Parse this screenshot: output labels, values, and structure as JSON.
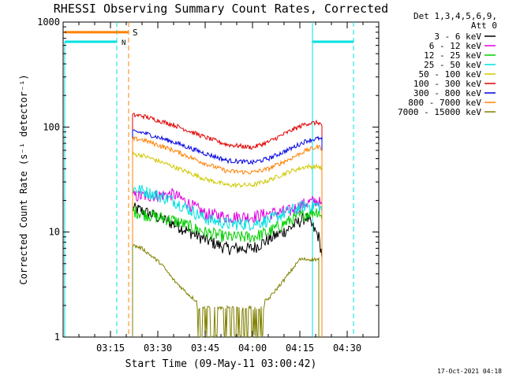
{
  "chart_data": {
    "type": "line",
    "title": "RHESSI Observing Summary Count Rates, Corrected",
    "xlabel": "Start Time (09-May-11 03:00:42)",
    "ylabel": "Corrected Count Rate (s⁻¹ detector⁻¹)",
    "y_scale": "log",
    "ylim": [
      1,
      1000
    ],
    "xlim": [
      "03:00",
      "04:40"
    ],
    "x_ticks": [
      "03:15",
      "03:30",
      "03:45",
      "04:00",
      "04:15",
      "04:30"
    ],
    "y_ticks": [
      "1",
      "10",
      "100",
      "1000"
    ],
    "grid": false,
    "legend_position": "top-right",
    "legend_header": [
      "Det 1,3,4,5,6,9,",
      "Att 0"
    ],
    "timestamp": "17-Oct-2021 04:18",
    "markers": [
      {
        "label": "S",
        "color": "#ff8000",
        "value": 800
      },
      {
        "label": "N",
        "color": "#00e0e0",
        "value": 650
      }
    ],
    "series": [
      {
        "name": "3 - 6 keV",
        "color": "#000000",
        "x": [
          "03:22",
          "03:25",
          "03:35",
          "03:45",
          "03:52",
          "04:00",
          "04:05",
          "04:12",
          "04:17",
          "04:21",
          "04:22"
        ],
        "values": [
          17,
          16,
          12,
          8.5,
          7.0,
          7.0,
          8.5,
          11,
          14,
          9,
          6
        ]
      },
      {
        "name": "6 - 12 keV",
        "color": "#e000e0",
        "x": [
          "03:22",
          "03:25",
          "03:35",
          "03:45",
          "03:52",
          "04:00",
          "04:05",
          "04:12",
          "04:17",
          "04:21",
          "04:22"
        ],
        "values": [
          22,
          22,
          23,
          15,
          14,
          14,
          15,
          16,
          19,
          20,
          17
        ]
      },
      {
        "name": "12 - 25 keV",
        "color": "#00d000",
        "x": [
          "03:22",
          "03:25",
          "03:35",
          "03:45",
          "03:52",
          "04:00",
          "04:05",
          "04:12",
          "04:17",
          "04:21",
          "04:22"
        ],
        "values": [
          16,
          15,
          13,
          10,
          9,
          9,
          10,
          13,
          15,
          16,
          13
        ]
      },
      {
        "name": "25 - 50 keV",
        "color": "#00e0e0",
        "x": [
          "03:22",
          "03:25",
          "03:35",
          "03:45",
          "03:52",
          "04:00",
          "04:05",
          "04:12",
          "04:17",
          "04:21",
          "04:22"
        ],
        "values": [
          26,
          25,
          20,
          13.5,
          12,
          12,
          13,
          16,
          18,
          18,
          16
        ]
      },
      {
        "name": "50 - 100 keV",
        "color": "#d0c800",
        "x": [
          "03:22",
          "03:25",
          "03:35",
          "03:45",
          "03:52",
          "04:00",
          "04:05",
          "04:12",
          "04:17",
          "04:21",
          "04:22"
        ],
        "values": [
          55,
          54,
          42,
          32,
          28,
          28,
          31,
          38,
          42,
          42,
          40
        ]
      },
      {
        "name": "100 - 300 keV",
        "color": "#e00000",
        "x": [
          "03:22",
          "03:25",
          "03:35",
          "03:45",
          "03:52",
          "04:00",
          "04:05",
          "04:12",
          "04:17",
          "04:21",
          "04:22"
        ],
        "values": [
          130,
          128,
          105,
          80,
          68,
          64,
          72,
          92,
          108,
          110,
          104
        ]
      },
      {
        "name": "300 - 800 keV",
        "color": "#0000e0",
        "x": [
          "03:22",
          "03:25",
          "03:35",
          "03:45",
          "03:52",
          "04:00",
          "04:05",
          "04:12",
          "04:17",
          "04:21",
          "04:22"
        ],
        "values": [
          90,
          89,
          72,
          56,
          48,
          46,
          50,
          62,
          74,
          78,
          76
        ]
      },
      {
        "name": "800 - 7000 keV",
        "color": "#ff8000",
        "x": [
          "03:22",
          "03:25",
          "03:35",
          "03:45",
          "03:52",
          "04:00",
          "04:05",
          "04:12",
          "04:17",
          "04:21",
          "04:22"
        ],
        "values": [
          77,
          76,
          60,
          45,
          38,
          37,
          40,
          50,
          60,
          65,
          62
        ]
      },
      {
        "name": "7000 - 15000 keV",
        "color": "#808000",
        "x": [
          "03:22",
          "03:25",
          "03:31",
          "03:35",
          "03:40",
          "03:45",
          "03:52",
          "04:00",
          "04:05",
          "04:10",
          "04:15",
          "04:21"
        ],
        "values": [
          7.5,
          7,
          5,
          3.5,
          2.5,
          1.9,
          1.9,
          1.9,
          2.3,
          3.5,
          5.5,
          5.5
        ]
      }
    ],
    "night_markers": [
      "03:17",
      "04:32"
    ],
    "saa_markers": [
      "03:20"
    ],
    "cyan_edges": [
      "03:17",
      "04:19",
      "04:32"
    ]
  }
}
